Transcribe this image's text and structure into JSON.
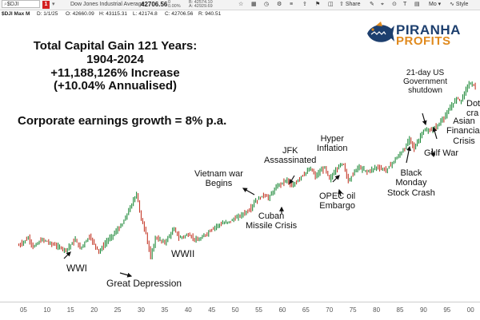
{
  "toolbar": {
    "symbol": "$DJI",
    "alert_count": "1",
    "description": "Dow Jones Industrial Average",
    "price": "42706.56",
    "change_top": "0",
    "change_pct": "0.00%",
    "bid": "B: 42574.10",
    "ask": "A: 42929.69",
    "share_label": "Share",
    "mo_label": "Mo",
    "style_label": "Style"
  },
  "infobar": {
    "symbol": "$DJI Max M",
    "date": "D: 1/1/25",
    "open": "O: 42660.09",
    "high": "H: 43115.31",
    "low": "L: 42174.8",
    "close": "C: 42706.56",
    "range": "R: 940.51"
  },
  "brand": {
    "name_top": "PIRANHA",
    "name_bottom": "PROFITS"
  },
  "headline": {
    "line1": "Total Capital Gain 121 Years:",
    "line2": "1904-2024",
    "line3": "+11,188,126% Increase",
    "line4": "(+10.04% Annualised)",
    "earnings": "Corporate earnings growth = 8% p.a."
  },
  "annotations": {
    "wwi": "WWI",
    "great_depression": "Great Depression",
    "wwii": "WWII",
    "vietnam_1": "Vietnam war",
    "vietnam_2": "Begins",
    "jfk_1": "JFK",
    "jfk_2": "Assassinated",
    "cuban_1": "Cuban",
    "cuban_2": "Missile Crisis",
    "hyper_1": "Hyper",
    "hyper_2": "Inflation",
    "opec_1": "OPEC oil",
    "opec_2": "Embargo",
    "black_1": "Black",
    "black_2": "Monday",
    "black_3": "Stock Crash",
    "gulf": "Gulf War",
    "asian_1": "Asian",
    "asian_2": "Financial",
    "asian_3": "Crisis",
    "shutdown_1": "21-day US",
    "shutdown_2": "Government",
    "shutdown_3": "shutdown",
    "dotcom_1": "Dot",
    "dotcom_2": "cra"
  },
  "chart_data": {
    "type": "line",
    "title": "",
    "xlabel": "",
    "ylabel": "",
    "x_ticks": [
      "05",
      "10",
      "15",
      "20",
      "25",
      "30",
      "35",
      "40",
      "45",
      "50",
      "55",
      "60",
      "65",
      "70",
      "75",
      "80",
      "85",
      "90",
      "95",
      "00"
    ],
    "x": [
      1904,
      1906,
      1907,
      1909,
      1911,
      1914,
      1916,
      1917,
      1919,
      1921,
      1923,
      1924,
      1926,
      1928,
      1929,
      1930,
      1931,
      1932,
      1933,
      1935,
      1937,
      1938,
      1940,
      1942,
      1946,
      1949,
      1953,
      1954,
      1956,
      1957,
      1959,
      1961,
      1962,
      1964,
      1966,
      1967,
      1969,
      1970,
      1972,
      1973,
      1974,
      1976,
      1978,
      1980,
      1982,
      1984,
      1986,
      1987,
      1988,
      1990,
      1991,
      1993,
      1995,
      1997,
      1998,
      1999,
      2000,
      2001
    ],
    "values": [
      4.2,
      4.45,
      4.15,
      4.4,
      4.25,
      4.05,
      4.4,
      4.1,
      4.5,
      4.0,
      4.4,
      4.55,
      4.9,
      5.55,
      5.9,
      5.05,
      4.6,
      3.8,
      4.45,
      4.3,
      4.75,
      4.45,
      4.55,
      4.35,
      4.85,
      5.0,
      5.35,
      5.6,
      5.85,
      5.75,
      6.15,
      6.35,
      6.1,
      6.45,
      6.7,
      6.45,
      6.75,
      6.35,
      6.8,
      6.85,
      6.3,
      6.75,
      6.6,
      6.75,
      6.65,
      7.0,
      7.35,
      7.7,
      7.35,
      7.95,
      7.9,
      8.1,
      8.5,
      9.0,
      8.9,
      9.3,
      9.5,
      9.35
    ],
    "series": [
      {
        "values_ref": "values",
        "color": "#2a7a2a"
      }
    ],
    "xlim": [
      1900,
      2002
    ],
    "ylim": [
      3,
      10
    ],
    "log_scale": true,
    "grid": false,
    "colors": {
      "up": "#1f8a3a",
      "down": "#c43a2a"
    }
  }
}
